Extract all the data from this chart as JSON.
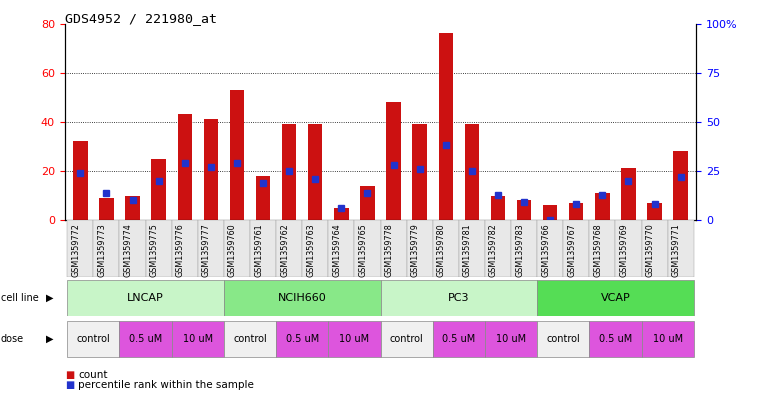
{
  "title": "GDS4952 / 221980_at",
  "samples": [
    "GSM1359772",
    "GSM1359773",
    "GSM1359774",
    "GSM1359775",
    "GSM1359776",
    "GSM1359777",
    "GSM1359760",
    "GSM1359761",
    "GSM1359762",
    "GSM1359763",
    "GSM1359764",
    "GSM1359765",
    "GSM1359778",
    "GSM1359779",
    "GSM1359780",
    "GSM1359781",
    "GSM1359782",
    "GSM1359783",
    "GSM1359766",
    "GSM1359767",
    "GSM1359768",
    "GSM1359769",
    "GSM1359770",
    "GSM1359771"
  ],
  "counts": [
    32,
    9,
    10,
    25,
    43,
    41,
    53,
    18,
    39,
    39,
    5,
    14,
    48,
    39,
    76,
    39,
    10,
    8,
    6,
    7,
    11,
    21,
    7,
    28
  ],
  "percentile_ranks": [
    24,
    14,
    10,
    20,
    29,
    27,
    29,
    19,
    25,
    21,
    6,
    14,
    28,
    26,
    38,
    25,
    13,
    9,
    0,
    8,
    13,
    20,
    8,
    22
  ],
  "cell_lines": [
    {
      "name": "LNCAP",
      "start": 0,
      "end": 6,
      "color": "#c8f5c8"
    },
    {
      "name": "NCIH660",
      "start": 6,
      "end": 12,
      "color": "#88e888"
    },
    {
      "name": "PC3",
      "start": 12,
      "end": 18,
      "color": "#c8f5c8"
    },
    {
      "name": "VCAP",
      "start": 18,
      "end": 24,
      "color": "#55dd55"
    }
  ],
  "doses": [
    {
      "name": "control",
      "start": 0,
      "end": 2
    },
    {
      "name": "0.5 uM",
      "start": 2,
      "end": 4
    },
    {
      "name": "10 uM",
      "start": 4,
      "end": 6
    },
    {
      "name": "control",
      "start": 6,
      "end": 8
    },
    {
      "name": "0.5 uM",
      "start": 8,
      "end": 10
    },
    {
      "name": "10 uM",
      "start": 10,
      "end": 12
    },
    {
      "name": "control",
      "start": 12,
      "end": 14
    },
    {
      "name": "0.5 uM",
      "start": 14,
      "end": 16
    },
    {
      "name": "10 uM",
      "start": 16,
      "end": 18
    },
    {
      "name": "control",
      "start": 18,
      "end": 20
    },
    {
      "name": "0.5 uM",
      "start": 20,
      "end": 22
    },
    {
      "name": "10 uM",
      "start": 22,
      "end": 24
    }
  ],
  "bar_color": "#cc1111",
  "percentile_color": "#2233cc",
  "control_dose_color": "#f0f0f0",
  "other_dose_color": "#dd55dd",
  "ylim_left": [
    0,
    80
  ],
  "ylim_right": [
    0,
    100
  ],
  "yticks_left": [
    0,
    20,
    40,
    60,
    80
  ],
  "yticks_right": [
    0,
    25,
    50,
    75,
    100
  ],
  "ytick_labels_right": [
    "0",
    "25",
    "50",
    "75",
    "100%"
  ]
}
